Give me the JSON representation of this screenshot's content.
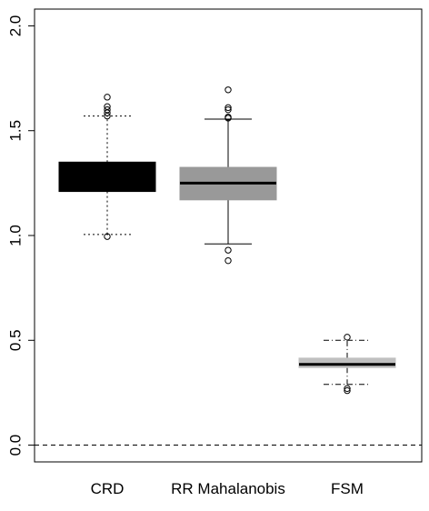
{
  "chart_data": {
    "type": "box",
    "title": "",
    "xlabel": "",
    "ylabel": "",
    "ylim": [
      -0.08,
      2.08
    ],
    "yticks": [
      0.0,
      0.5,
      1.0,
      1.5,
      2.0
    ],
    "ytick_labels": [
      "0.0",
      "0.5",
      "1.0",
      "1.5",
      "2.0"
    ],
    "reference_line": {
      "y": 0.0,
      "style": "dashed"
    },
    "grid": false,
    "categories": [
      "CRD",
      "RR Mahalanobis",
      "FSM"
    ],
    "boxes": [
      {
        "name": "CRD",
        "q1": 1.21,
        "median": 1.27,
        "q3": 1.35,
        "whisker_low": 1.005,
        "whisker_high": 1.57,
        "outliers": [
          0.995,
          1.57,
          1.585,
          1.6,
          1.615,
          1.66
        ],
        "fill": "#000000",
        "whisker_style": "dotted"
      },
      {
        "name": "RR Mahalanobis",
        "q1": 1.17,
        "median": 1.25,
        "q3": 1.325,
        "whisker_low": 0.96,
        "whisker_high": 1.555,
        "outliers": [
          0.93,
          0.88,
          1.56,
          1.565,
          1.6,
          1.61,
          1.695
        ],
        "fill": "#999999",
        "whisker_style": "solid"
      },
      {
        "name": "FSM",
        "q1": 0.37,
        "median": 0.385,
        "q3": 0.415,
        "whisker_low": 0.29,
        "whisker_high": 0.5,
        "outliers": [
          0.515,
          0.27,
          0.26
        ],
        "fill": "#c0c0c0",
        "whisker_style": "dashdot"
      }
    ]
  }
}
